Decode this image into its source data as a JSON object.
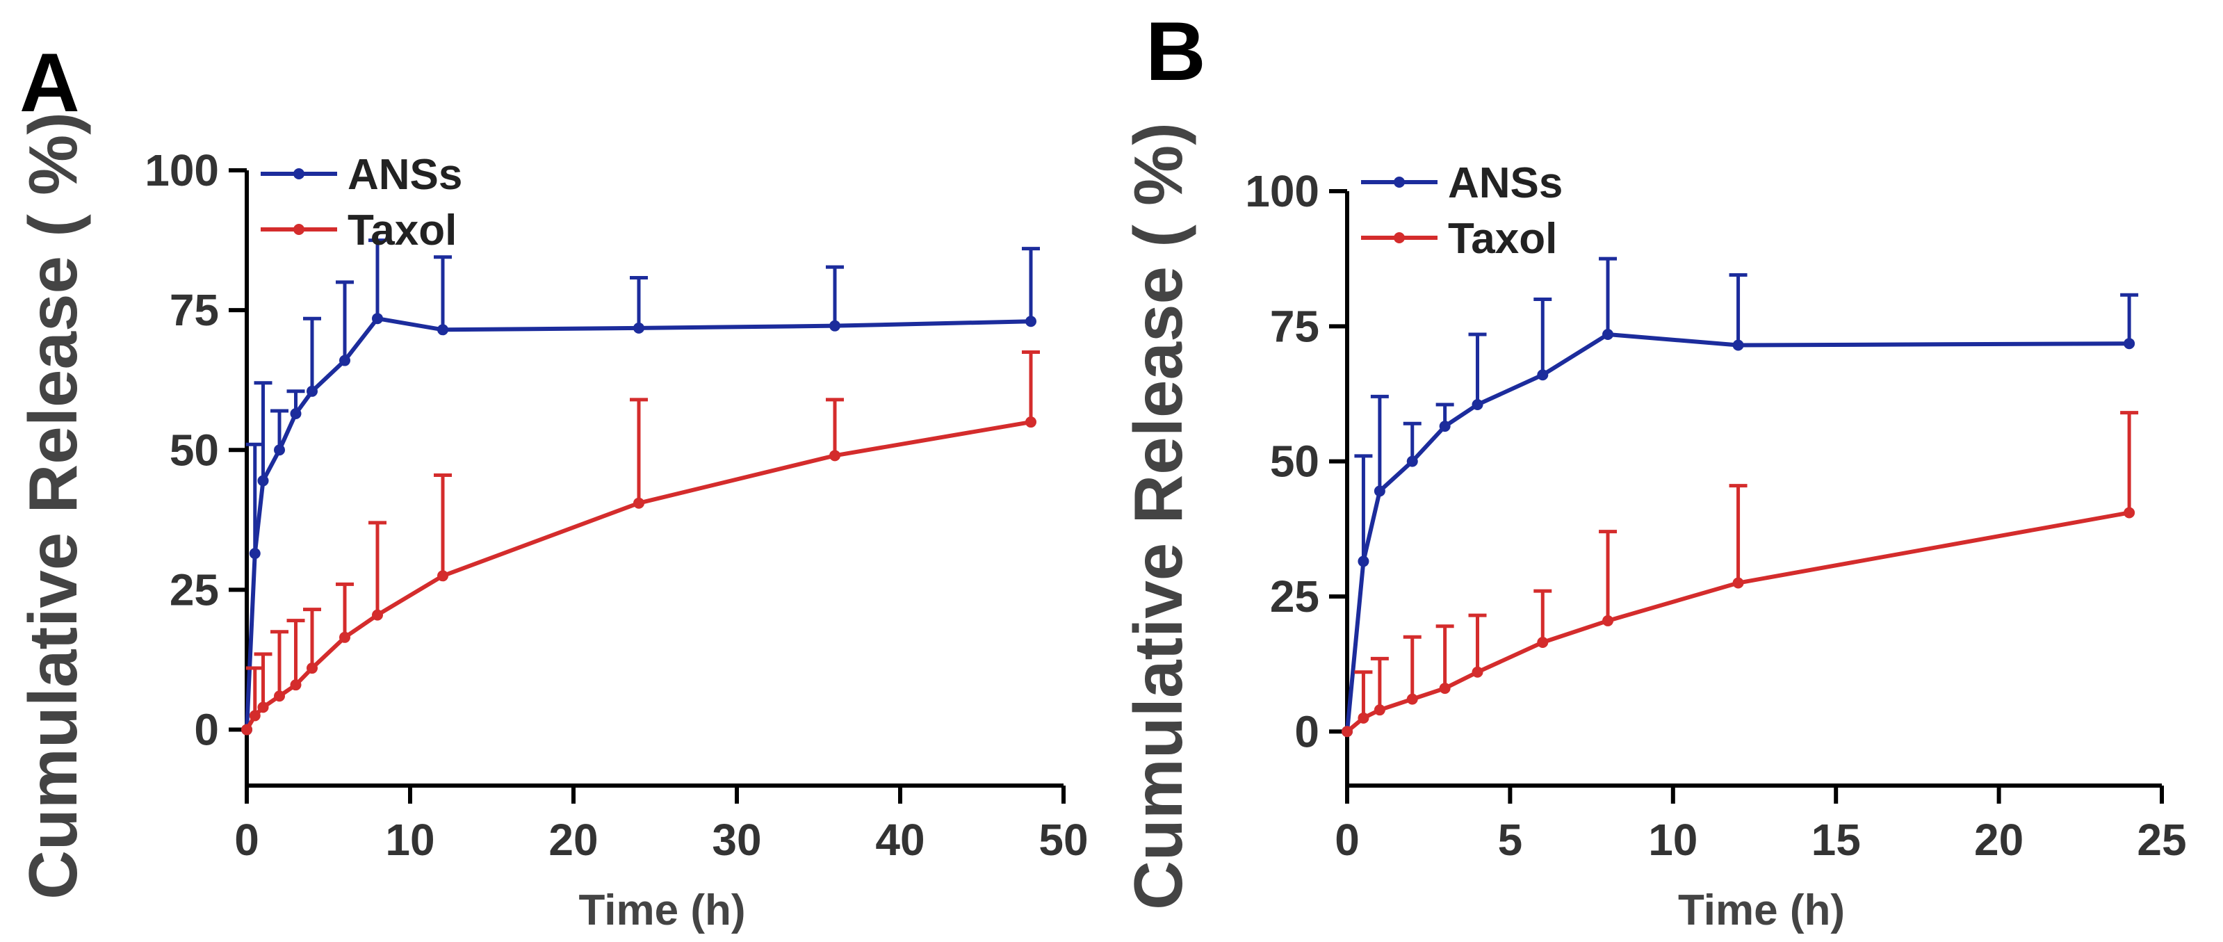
{
  "chart_data": [
    {
      "panel": "A",
      "type": "line",
      "xlabel": "Time (h)",
      "ylabel": "Cumulative Release ( %)",
      "xlim": [
        0,
        50
      ],
      "ylim": [
        -10,
        100
      ],
      "xticks": [
        0,
        10,
        20,
        30,
        40,
        50
      ],
      "yticks": [
        0,
        25,
        50,
        75,
        100
      ],
      "legend_position": "top-left",
      "series": [
        {
          "name": "ANSs",
          "color": "#1c2c9c",
          "x": [
            0,
            0.5,
            1,
            2,
            3,
            4,
            6,
            8,
            12,
            24,
            36,
            48
          ],
          "y": [
            0,
            31.5,
            44.5,
            50,
            56.5,
            60.5,
            66,
            73.5,
            71.5,
            71.8,
            72.2,
            73
          ],
          "err": [
            0,
            19.5,
            17.5,
            7,
            4,
            13,
            14,
            14,
            13,
            9,
            10.5,
            13
          ]
        },
        {
          "name": "Taxol",
          "color": "#d42c2c",
          "x": [
            0,
            0.5,
            1,
            2,
            3,
            4,
            6,
            8,
            12,
            24,
            36,
            48
          ],
          "y": [
            0,
            2.5,
            4,
            6,
            8,
            11,
            16.5,
            20.5,
            27.5,
            40.5,
            49,
            55
          ],
          "err": [
            0,
            8.5,
            9.5,
            11.5,
            11.5,
            10.5,
            9.5,
            16.5,
            18,
            18.5,
            10,
            12.5
          ]
        }
      ]
    },
    {
      "panel": "B",
      "type": "line",
      "xlabel": "Time (h)",
      "ylabel": "Cumulative Release ( %)",
      "xlim": [
        0,
        25
      ],
      "ylim": [
        -10,
        100
      ],
      "xticks": [
        0,
        5,
        10,
        15,
        20,
        25
      ],
      "yticks": [
        0,
        25,
        50,
        75,
        100
      ],
      "legend_position": "top-left",
      "series": [
        {
          "name": "ANSs",
          "color": "#1c2c9c",
          "x": [
            0,
            0.5,
            1,
            2,
            3,
            4,
            6,
            8,
            12,
            24
          ],
          "y": [
            0,
            31.5,
            44.5,
            50,
            56.5,
            60.5,
            66,
            73.5,
            71.5,
            71.8
          ],
          "err": [
            0,
            19.5,
            17.5,
            7,
            4,
            13,
            14,
            14,
            13,
            9
          ]
        },
        {
          "name": "Taxol",
          "color": "#d42c2c",
          "x": [
            0,
            0.5,
            1,
            2,
            3,
            4,
            6,
            8,
            12,
            24
          ],
          "y": [
            0,
            2.5,
            4,
            6,
            8,
            11,
            16.5,
            20.5,
            27.5,
            40.5
          ],
          "err": [
            0,
            8.5,
            9.5,
            11.5,
            11.5,
            10.5,
            9.5,
            16.5,
            18,
            18.5
          ]
        }
      ]
    }
  ]
}
